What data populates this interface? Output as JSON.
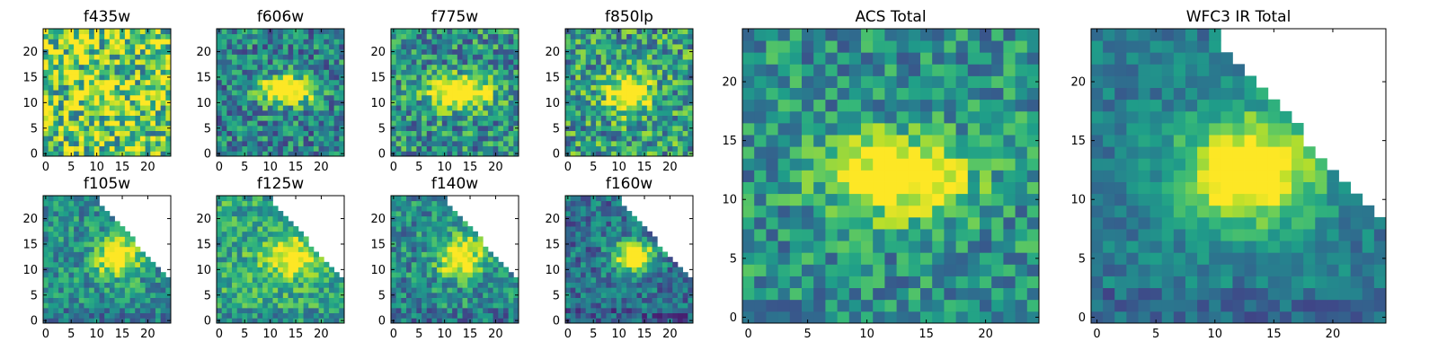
{
  "figure": {
    "colormap": "viridis",
    "background": "#ffffff",
    "axis_color": "#000000"
  },
  "chart_data": [
    {
      "type": "heatmap",
      "title": "f435w",
      "xlim": [
        0,
        24
      ],
      "ylim": [
        0,
        24
      ],
      "xticks": [
        "0",
        "5",
        "10",
        "15",
        "20"
      ],
      "yticks": [
        "0",
        "5",
        "10",
        "15",
        "20"
      ],
      "source_shape": "rounded-blob",
      "blob": {
        "cx": 11,
        "cy": 12,
        "sx": 3.2,
        "sy": 2.5,
        "amp": 0.12
      },
      "background_level": 0.76,
      "noise": 0.42,
      "missing_region": "none",
      "seed": 11
    },
    {
      "type": "heatmap",
      "title": "f606w",
      "xlim": [
        0,
        24
      ],
      "ylim": [
        0,
        24
      ],
      "xticks": [
        "0",
        "5",
        "10",
        "15",
        "20"
      ],
      "yticks": [
        "0",
        "5",
        "10",
        "15",
        "20"
      ],
      "source_shape": "elongated",
      "blob": {
        "cx": 13,
        "cy": 12.5,
        "sx": 3.8,
        "sy": 1.9,
        "amp": 0.55
      },
      "background_level": 0.45,
      "noise": 0.28,
      "missing_region": "none",
      "seed": 23
    },
    {
      "type": "heatmap",
      "title": "f775w",
      "xlim": [
        0,
        24
      ],
      "ylim": [
        0,
        24
      ],
      "xticks": [
        "0",
        "5",
        "10",
        "15",
        "20"
      ],
      "yticks": [
        "0",
        "5",
        "10",
        "15",
        "20"
      ],
      "source_shape": "elongated",
      "blob": {
        "cx": 13,
        "cy": 12,
        "sx": 4.2,
        "sy": 2.1,
        "amp": 0.52
      },
      "background_level": 0.5,
      "noise": 0.3,
      "missing_region": "none",
      "seed": 37
    },
    {
      "type": "heatmap",
      "title": "f850lp",
      "xlim": [
        0,
        24
      ],
      "ylim": [
        0,
        24
      ],
      "xticks": [
        "0",
        "5",
        "10",
        "15",
        "20"
      ],
      "yticks": [
        "0",
        "5",
        "10",
        "15",
        "20"
      ],
      "source_shape": "compact",
      "blob": {
        "cx": 12,
        "cy": 12,
        "sx": 3.0,
        "sy": 2.6,
        "amp": 0.45
      },
      "background_level": 0.55,
      "noise": 0.32,
      "missing_region": "none",
      "seed": 41
    },
    {
      "type": "heatmap",
      "title": "f105w",
      "xlim": [
        0,
        24
      ],
      "ylim": [
        0,
        24
      ],
      "xticks": [
        "0",
        "5",
        "10",
        "15",
        "20"
      ],
      "yticks": [
        "0",
        "5",
        "10",
        "15",
        "20"
      ],
      "source_shape": "compact",
      "blob": {
        "cx": 14,
        "cy": 12.5,
        "sx": 3.0,
        "sy": 2.6,
        "amp": 0.42
      },
      "background_level": 0.5,
      "noise": 0.22,
      "missing_region": "upper-right",
      "seed": 53
    },
    {
      "type": "heatmap",
      "title": "f125w",
      "xlim": [
        0,
        24
      ],
      "ylim": [
        0,
        24
      ],
      "xticks": [
        "0",
        "5",
        "10",
        "15",
        "20"
      ],
      "yticks": [
        "0",
        "5",
        "10",
        "15",
        "20"
      ],
      "source_shape": "compact",
      "blob": {
        "cx": 13.5,
        "cy": 12.5,
        "sx": 3.5,
        "sy": 2.8,
        "amp": 0.32
      },
      "background_level": 0.6,
      "noise": 0.22,
      "missing_region": "upper-right",
      "seed": 67
    },
    {
      "type": "heatmap",
      "title": "f140w",
      "xlim": [
        0,
        24
      ],
      "ylim": [
        0,
        24
      ],
      "xticks": [
        "0",
        "5",
        "10",
        "15",
        "20"
      ],
      "yticks": [
        "0",
        "5",
        "10",
        "15",
        "20"
      ],
      "source_shape": "compact",
      "blob": {
        "cx": 13,
        "cy": 12.5,
        "sx": 3.0,
        "sy": 2.8,
        "amp": 0.45
      },
      "background_level": 0.48,
      "noise": 0.24,
      "missing_region": "upper-right",
      "seed": 79
    },
    {
      "type": "heatmap",
      "title": "f160w",
      "xlim": [
        0,
        24
      ],
      "ylim": [
        0,
        24
      ],
      "xticks": [
        "0",
        "5",
        "10",
        "15",
        "20"
      ],
      "yticks": [
        "0",
        "5",
        "10",
        "15",
        "20"
      ],
      "source_shape": "compact",
      "blob": {
        "cx": 13,
        "cy": 12.5,
        "sx": 2.8,
        "sy": 2.2,
        "amp": 0.52
      },
      "background_level": 0.38,
      "noise": 0.22,
      "missing_region": "upper-right",
      "seed": 83
    },
    {
      "type": "heatmap",
      "title": "ACS Total",
      "xlim": [
        0,
        24
      ],
      "ylim": [
        0,
        24
      ],
      "xticks": [
        "0",
        "5",
        "10",
        "15",
        "20"
      ],
      "yticks": [
        "0",
        "5",
        "10",
        "15",
        "20"
      ],
      "source_shape": "elongated",
      "blob": {
        "cx": 12.5,
        "cy": 12,
        "sx": 4.0,
        "sy": 2.3,
        "amp": 0.48
      },
      "background_level": 0.5,
      "noise": 0.24,
      "missing_region": "none",
      "seed": 97
    },
    {
      "type": "heatmap",
      "title": "WFC3 IR Total",
      "xlim": [
        0,
        24
      ],
      "ylim": [
        0,
        24
      ],
      "xticks": [
        "0",
        "5",
        "10",
        "15",
        "20"
      ],
      "yticks": [
        "0",
        "5",
        "10",
        "15",
        "20"
      ],
      "source_shape": "compact",
      "blob": {
        "cx": 13,
        "cy": 12.5,
        "sx": 4.0,
        "sy": 3.2,
        "amp": 0.5
      },
      "background_level": 0.42,
      "noise": 0.14,
      "missing_region": "upper-right",
      "seed": 101
    }
  ]
}
